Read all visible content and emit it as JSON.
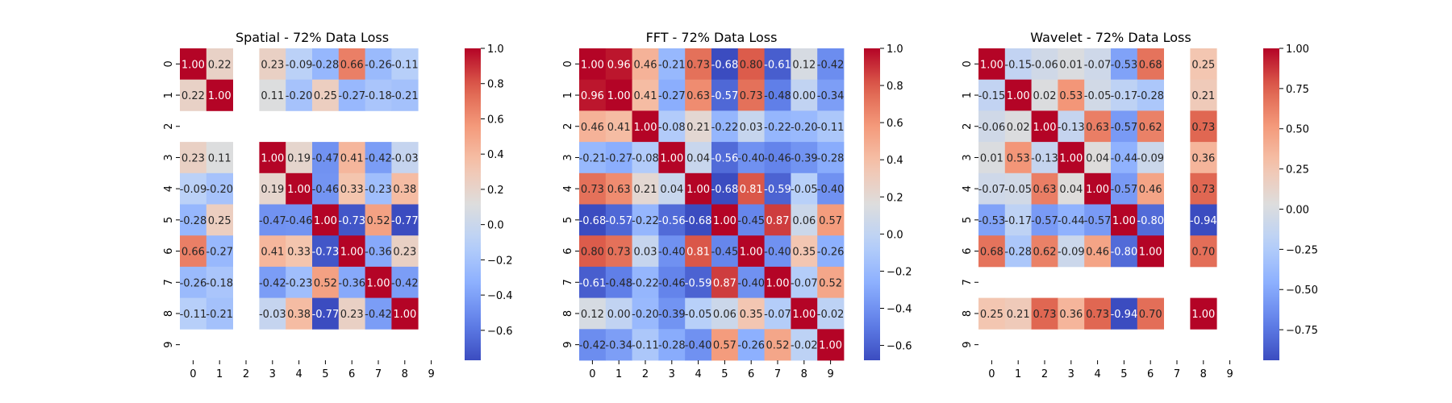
{
  "chart_data": [
    {
      "type": "heatmap",
      "title": "Spatial - 72% Data Loss",
      "x_tick_labels": [
        "0",
        "1",
        "2",
        "3",
        "4",
        "5",
        "6",
        "7",
        "8",
        "9"
      ],
      "y_tick_labels": [
        "0",
        "1",
        "2",
        "3",
        "4",
        "5",
        "6",
        "7",
        "8",
        "9"
      ],
      "colorbar_range": [
        -0.77,
        1.0
      ],
      "colorbar_ticks": [
        "1.0",
        "0.8",
        "0.6",
        "0.4",
        "0.2",
        "0.0",
        "−0.2",
        "−0.4",
        "−0.6"
      ],
      "colorbar_tick_values": [
        1.0,
        0.8,
        0.6,
        0.4,
        0.2,
        0.0,
        -0.2,
        -0.4,
        -0.6
      ],
      "colormap": "coolwarm",
      "values": [
        [
          1.0,
          0.22,
          null,
          0.23,
          -0.09,
          -0.28,
          0.66,
          -0.26,
          -0.11,
          null
        ],
        [
          0.22,
          1.0,
          null,
          0.11,
          -0.2,
          0.25,
          -0.27,
          -0.18,
          -0.21,
          null
        ],
        [
          null,
          null,
          null,
          null,
          null,
          null,
          null,
          null,
          null,
          null
        ],
        [
          0.23,
          0.11,
          null,
          1.0,
          0.19,
          -0.47,
          0.41,
          -0.42,
          -0.03,
          null
        ],
        [
          -0.09,
          -0.2,
          null,
          0.19,
          1.0,
          -0.46,
          0.33,
          -0.23,
          0.38,
          null
        ],
        [
          -0.28,
          0.25,
          null,
          -0.47,
          -0.46,
          1.0,
          -0.73,
          0.52,
          -0.77,
          null
        ],
        [
          0.66,
          -0.27,
          null,
          0.41,
          0.33,
          -0.73,
          1.0,
          -0.36,
          0.23,
          null
        ],
        [
          -0.26,
          -0.18,
          null,
          -0.42,
          -0.23,
          0.52,
          -0.36,
          1.0,
          -0.42,
          null
        ],
        [
          -0.11,
          -0.21,
          null,
          -0.03,
          0.38,
          -0.77,
          0.23,
          -0.42,
          1.0,
          null
        ],
        [
          null,
          null,
          null,
          null,
          null,
          null,
          null,
          null,
          null,
          null
        ]
      ]
    },
    {
      "type": "heatmap",
      "title": "FFT - 72% Data Loss",
      "x_tick_labels": [
        "0",
        "1",
        "2",
        "3",
        "4",
        "5",
        "6",
        "7",
        "8",
        "9"
      ],
      "y_tick_labels": [
        "0",
        "1",
        "2",
        "3",
        "4",
        "5",
        "6",
        "7",
        "8",
        "9"
      ],
      "colorbar_range": [
        -0.68,
        1.0
      ],
      "colorbar_ticks": [
        "1.0",
        "0.8",
        "0.6",
        "0.4",
        "0.2",
        "0.0",
        "−0.2",
        "−0.4",
        "−0.6"
      ],
      "colorbar_tick_values": [
        1.0,
        0.8,
        0.6,
        0.4,
        0.2,
        0.0,
        -0.2,
        -0.4,
        -0.6
      ],
      "colormap": "coolwarm",
      "values": [
        [
          1.0,
          0.96,
          0.46,
          -0.21,
          0.73,
          -0.68,
          0.8,
          -0.61,
          0.12,
          -0.42
        ],
        [
          0.96,
          1.0,
          0.41,
          -0.27,
          0.63,
          -0.57,
          0.73,
          -0.48,
          -0.0,
          -0.34
        ],
        [
          0.46,
          0.41,
          1.0,
          -0.08,
          0.21,
          -0.22,
          0.03,
          -0.22,
          -0.2,
          -0.11
        ],
        [
          -0.21,
          -0.27,
          -0.08,
          1.0,
          0.04,
          -0.56,
          -0.4,
          -0.46,
          -0.39,
          -0.28
        ],
        [
          0.73,
          0.63,
          0.21,
          0.04,
          1.0,
          -0.68,
          0.81,
          -0.59,
          -0.05,
          -0.4
        ],
        [
          -0.68,
          -0.57,
          -0.22,
          -0.56,
          -0.68,
          1.0,
          -0.45,
          0.87,
          0.06,
          0.57
        ],
        [
          0.8,
          0.73,
          0.03,
          -0.4,
          0.81,
          -0.45,
          1.0,
          -0.4,
          0.35,
          -0.26
        ],
        [
          -0.61,
          -0.48,
          -0.22,
          -0.46,
          -0.59,
          0.87,
          -0.4,
          1.0,
          -0.07,
          0.52
        ],
        [
          0.12,
          -0.0,
          -0.2,
          -0.39,
          -0.05,
          0.06,
          0.35,
          -0.07,
          1.0,
          -0.02
        ],
        [
          -0.42,
          -0.34,
          -0.11,
          -0.28,
          -0.4,
          0.57,
          -0.26,
          0.52,
          -0.02,
          1.0
        ]
      ]
    },
    {
      "type": "heatmap",
      "title": "Wavelet - 72% Data Loss",
      "x_tick_labels": [
        "0",
        "1",
        "2",
        "3",
        "4",
        "5",
        "6",
        "7",
        "8",
        "9"
      ],
      "y_tick_labels": [
        "0",
        "1",
        "2",
        "3",
        "4",
        "5",
        "6",
        "7",
        "8",
        "9"
      ],
      "colorbar_range": [
        -0.94,
        1.0
      ],
      "colorbar_ticks": [
        "1.00",
        "0.75",
        "0.50",
        "0.25",
        "0.00",
        "−0.25",
        "−0.50",
        "−0.75"
      ],
      "colorbar_tick_values": [
        1.0,
        0.75,
        0.5,
        0.25,
        0.0,
        -0.25,
        -0.5,
        -0.75
      ],
      "colormap": "coolwarm",
      "values": [
        [
          1.0,
          -0.15,
          -0.06,
          0.01,
          -0.07,
          -0.53,
          0.68,
          null,
          0.25,
          null
        ],
        [
          -0.15,
          1.0,
          0.02,
          0.53,
          -0.05,
          -0.17,
          -0.28,
          null,
          0.21,
          null
        ],
        [
          -0.06,
          0.02,
          1.0,
          -0.13,
          0.63,
          -0.57,
          0.62,
          null,
          0.73,
          null
        ],
        [
          0.01,
          0.53,
          -0.13,
          1.0,
          0.04,
          -0.44,
          -0.09,
          null,
          0.36,
          null
        ],
        [
          -0.07,
          -0.05,
          0.63,
          0.04,
          1.0,
          -0.57,
          0.46,
          null,
          0.73,
          null
        ],
        [
          -0.53,
          -0.17,
          -0.57,
          -0.44,
          -0.57,
          1.0,
          -0.8,
          null,
          -0.94,
          null
        ],
        [
          0.68,
          -0.28,
          0.62,
          -0.09,
          0.46,
          -0.8,
          1.0,
          null,
          0.7,
          null
        ],
        [
          null,
          null,
          null,
          null,
          null,
          null,
          null,
          null,
          null,
          null
        ],
        [
          0.25,
          0.21,
          0.73,
          0.36,
          0.73,
          -0.94,
          0.7,
          null,
          1.0,
          null
        ],
        [
          null,
          null,
          null,
          null,
          null,
          null,
          null,
          null,
          null,
          null
        ]
      ]
    }
  ]
}
